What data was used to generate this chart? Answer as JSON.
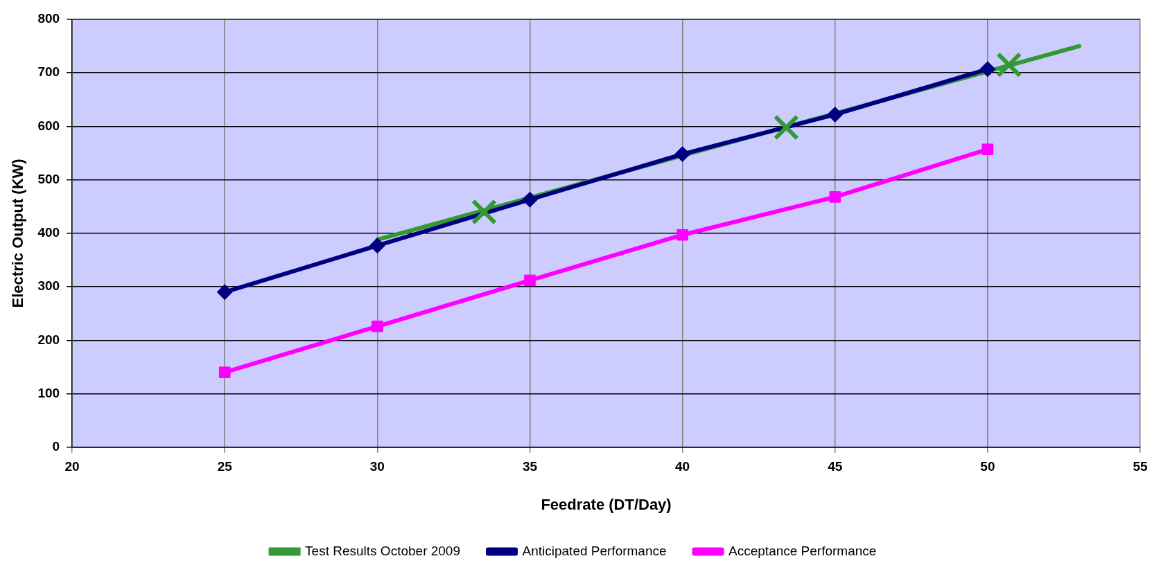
{
  "chart_data": {
    "type": "line",
    "xlabel": "Feedrate (DT/Day)",
    "ylabel": "Electric Output (KW)",
    "xlim": [
      20,
      55
    ],
    "xticks": [
      20,
      25,
      30,
      35,
      40,
      45,
      50,
      55
    ],
    "ylim": [
      0,
      800
    ],
    "yticks": [
      0,
      100,
      200,
      300,
      400,
      500,
      600,
      700,
      800
    ],
    "grid": true,
    "legend": "bottom",
    "line_style": "solid",
    "series": [
      {
        "name": "Anticipated Performance",
        "color": "#000080",
        "marker": "diamond",
        "x": [
          25,
          30,
          35,
          40,
          45,
          50
        ],
        "values": [
          290,
          377,
          463,
          548,
          622,
          707
        ]
      },
      {
        "name": "Acceptance Performance",
        "color": "#ff00ff",
        "marker": "square",
        "x": [
          25,
          30,
          35,
          40,
          45,
          50
        ],
        "values": [
          140,
          226,
          312,
          397,
          468,
          557
        ]
      },
      {
        "name": "Test Results October 2009",
        "type": "scatter",
        "color": "#339933",
        "marker": "cross",
        "x": [
          33.5,
          43.4,
          50.7
        ],
        "values": [
          440,
          598,
          715
        ]
      },
      {
        "type": "line",
        "color": "#339933",
        "marker": "none",
        "x": [
          30,
          53
        ],
        "values": [
          388,
          750
        ]
      }
    ]
  }
}
